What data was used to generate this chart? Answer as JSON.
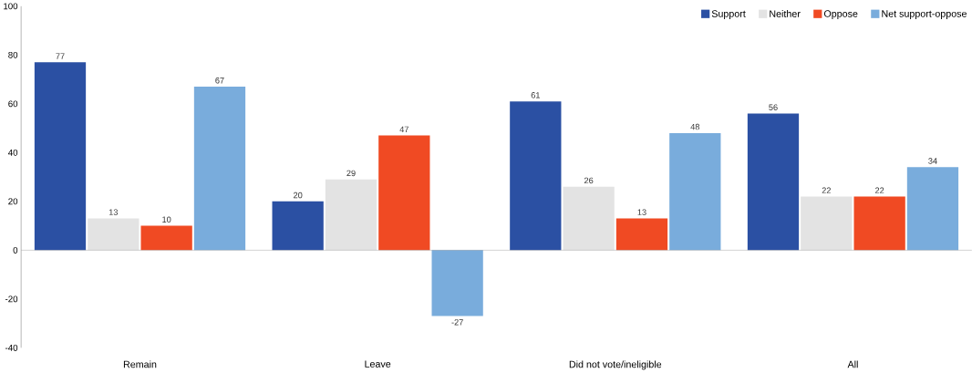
{
  "chart_data": {
    "type": "bar",
    "categories": [
      "Remain",
      "Leave",
      "Did not vote/ineligible",
      "All"
    ],
    "series": [
      {
        "name": "Support",
        "color": "#2b50a3",
        "values": [
          77,
          20,
          61,
          56
        ]
      },
      {
        "name": "Neither",
        "color": "#e3e3e3",
        "values": [
          13,
          29,
          26,
          22
        ]
      },
      {
        "name": "Oppose",
        "color": "#f04a23",
        "values": [
          10,
          47,
          13,
          22
        ]
      },
      {
        "name": "Net support-oppose",
        "color": "#79acdc",
        "values": [
          67,
          -27,
          48,
          34
        ]
      }
    ],
    "ylim": [
      -40,
      100
    ],
    "yticks": [
      -40,
      -20,
      0,
      20,
      40,
      60,
      80,
      100
    ],
    "data_labels": true,
    "legend": "top right",
    "ref_lines": [
      {
        "axis": "y",
        "value": 0,
        "color": "#8c8c8c"
      }
    ]
  }
}
